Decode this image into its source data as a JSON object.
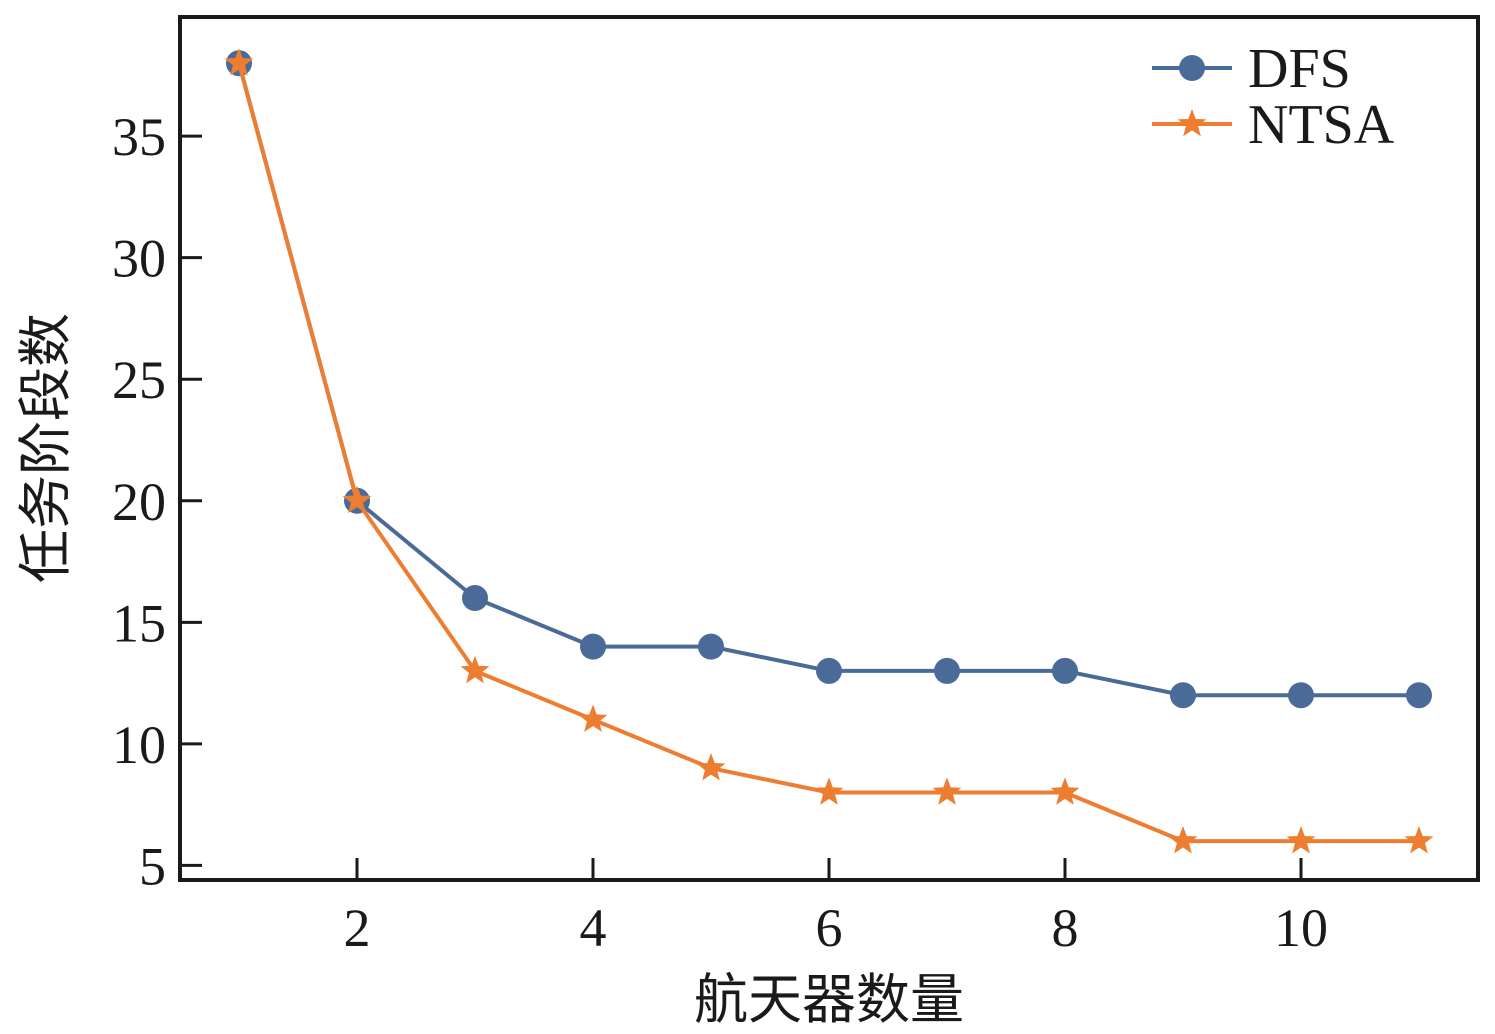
{
  "chart_data": {
    "type": "line",
    "xlabel": "航天器数量",
    "ylabel": "任务阶段数",
    "xlim": [
      0.5,
      11.5
    ],
    "ylim": [
      4.4,
      39.9
    ],
    "xticks": [
      2,
      4,
      6,
      8,
      10
    ],
    "yticks": [
      5,
      10,
      15,
      20,
      25,
      30,
      35
    ],
    "legend_position": "top-right",
    "grid": false,
    "x": [
      1,
      2,
      3,
      4,
      5,
      6,
      7,
      8,
      9,
      10,
      11
    ],
    "series": [
      {
        "name": "DFS",
        "marker": "circle",
        "color": "#4a6a97",
        "values": [
          38,
          20,
          16,
          14,
          14,
          13,
          13,
          13,
          12,
          12,
          12
        ]
      },
      {
        "name": "NTSA",
        "marker": "star",
        "color": "#ed7d31",
        "values": [
          38,
          20,
          13,
          11,
          9,
          8,
          8,
          8,
          6,
          6,
          6
        ]
      }
    ]
  }
}
